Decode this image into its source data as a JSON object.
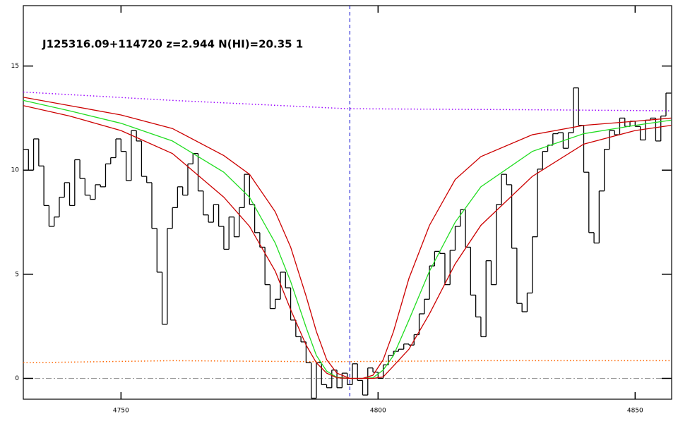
{
  "chart_data": {
    "type": "spectrum",
    "title": "J125316.09+114720 z=2.944 N(HI)=20.35 1",
    "xlim": [
      4731,
      4857.1
    ],
    "ylim": [
      -1,
      17.9
    ],
    "xticks": [
      4750,
      4800,
      4850
    ],
    "yticks": [
      0,
      5,
      10,
      15
    ],
    "hline_y": 0,
    "vline_x": 4794.5,
    "series": [
      {
        "style": "steps",
        "color": "#000000",
        "bins": [
          4731,
          4732,
          4733,
          4734,
          4735,
          4736,
          4737,
          4738,
          4739,
          4740,
          4741,
          4742,
          4743,
          4744,
          4745,
          4746,
          4747,
          4748,
          4749,
          4750,
          4751,
          4752,
          4753,
          4754,
          4755,
          4756,
          4757,
          4758,
          4759,
          4760,
          4761,
          4762,
          4763,
          4764,
          4765,
          4766,
          4767,
          4768,
          4769,
          4770,
          4771,
          4772,
          4773,
          4774,
          4775,
          4776,
          4777,
          4778,
          4779,
          4780,
          4781,
          4782,
          4783,
          4784,
          4785,
          4786,
          4787,
          4788,
          4789,
          4790,
          4791,
          4792,
          4793,
          4794,
          4795,
          4796,
          4797,
          4798,
          4799,
          4800,
          4801,
          4802,
          4803,
          4804,
          4805,
          4806,
          4807,
          4808,
          4809,
          4810,
          4811,
          4812,
          4813,
          4814,
          4815,
          4816,
          4817,
          4818,
          4819,
          4820,
          4821,
          4822,
          4823,
          4824,
          4825,
          4826,
          4827,
          4828,
          4829,
          4830,
          4831,
          4832,
          4833,
          4834,
          4835,
          4836,
          4837,
          4838,
          4839,
          4840,
          4841,
          4842,
          4843,
          4844,
          4845,
          4846,
          4847,
          4848,
          4849,
          4850,
          4851,
          4852,
          4853,
          4854,
          4855,
          4856,
          4857
        ],
        "values": [
          11.0,
          10.0,
          11.5,
          10.2,
          8.3,
          7.3,
          7.75,
          8.7,
          9.4,
          8.3,
          10.5,
          9.6,
          8.8,
          8.6,
          9.3,
          9.2,
          10.3,
          10.6,
          11.5,
          10.9,
          9.5,
          11.9,
          11.4,
          9.7,
          9.4,
          7.2,
          5.1,
          2.6,
          7.2,
          8.2,
          9.2,
          8.8,
          10.3,
          10.8,
          9.0,
          7.85,
          7.5,
          8.35,
          7.3,
          6.2,
          7.75,
          6.8,
          8.2,
          9.8,
          8.35,
          7.0,
          6.3,
          4.5,
          3.35,
          3.8,
          5.1,
          4.35,
          2.8,
          2.0,
          1.75,
          0.75,
          -0.95,
          0.75,
          -0.3,
          -0.45,
          0.4,
          -0.45,
          0.25,
          -0.3,
          0.7,
          -0.1,
          -0.8,
          0.5,
          0.3,
          0.0,
          0.65,
          1.1,
          1.3,
          1.4,
          1.65,
          1.6,
          2.1,
          3.1,
          3.8,
          5.4,
          6.1,
          6.0,
          4.5,
          6.15,
          7.3,
          8.1,
          6.3,
          4.0,
          2.95,
          2.0,
          5.65,
          4.5,
          8.35,
          9.8,
          9.3,
          6.25,
          3.6,
          3.2,
          4.1,
          6.8,
          10.05,
          10.9,
          11.2,
          11.75,
          11.8,
          11.05,
          11.8,
          13.95,
          12.15,
          9.9,
          7.0,
          6.5,
          9.0,
          11.0,
          11.9,
          11.7,
          12.5,
          12.1,
          12.35,
          12.1,
          11.45,
          12.4,
          12.5,
          11.4,
          12.6,
          13.7
        ]
      },
      {
        "style": "line",
        "color": "#22dd22",
        "x": [
          4731,
          4740,
          4750,
          4760,
          4770,
          4775,
          4780,
          4783,
          4786,
          4788,
          4790,
          4792,
          4794.5,
          4797,
          4799,
          4801,
          4803,
          4806,
          4810,
          4815,
          4820,
          4830,
          4840,
          4850,
          4857
        ],
        "values": [
          13.35,
          12.85,
          12.25,
          11.4,
          9.9,
          8.7,
          6.5,
          4.65,
          2.45,
          1.1,
          0.35,
          0.05,
          0,
          0,
          0.03,
          0.4,
          1.1,
          2.8,
          5.15,
          7.5,
          9.2,
          10.9,
          11.75,
          12.15,
          12.4
        ]
      },
      {
        "style": "line",
        "color": "#cc0000",
        "x": [
          4731,
          4740,
          4750,
          4760,
          4770,
          4775,
          4780,
          4783,
          4786,
          4788,
          4790,
          4792,
          4794.5,
          4797,
          4799,
          4801,
          4803,
          4806,
          4810,
          4815,
          4820,
          4830,
          4840,
          4850,
          4857
        ],
        "values": [
          13.5,
          13.1,
          12.65,
          12.0,
          10.7,
          9.8,
          8.0,
          6.3,
          3.95,
          2.25,
          0.9,
          0.25,
          0,
          0,
          0.15,
          0.9,
          2.25,
          4.8,
          7.35,
          9.55,
          10.65,
          11.7,
          12.15,
          12.35,
          12.5
        ]
      },
      {
        "style": "line",
        "color": "#cc0000",
        "x": [
          4731,
          4740,
          4750,
          4760,
          4770,
          4775,
          4780,
          4783,
          4786,
          4788,
          4790,
          4792,
          4794.5,
          4797,
          4799,
          4801,
          4803,
          4806,
          4810,
          4815,
          4820,
          4830,
          4840,
          4850,
          4857
        ],
        "values": [
          13.1,
          12.6,
          11.9,
          10.8,
          8.7,
          7.3,
          5.15,
          3.3,
          1.6,
          0.75,
          0.25,
          0.03,
          0,
          0,
          0,
          0.07,
          0.6,
          1.4,
          3.1,
          5.5,
          7.35,
          9.7,
          11.25,
          11.9,
          12.15
        ]
      },
      {
        "style": "dotted",
        "color": "#9900ff",
        "x": [
          4731,
          4760,
          4794,
          4830,
          4857
        ],
        "values": [
          13.75,
          13.35,
          12.95,
          12.9,
          12.85
        ]
      },
      {
        "style": "dotted",
        "color": "#ff6600",
        "x": [
          4731,
          4760,
          4790,
          4820,
          4857
        ],
        "values": [
          0.75,
          0.85,
          0.8,
          0.85,
          0.85
        ]
      }
    ]
  }
}
